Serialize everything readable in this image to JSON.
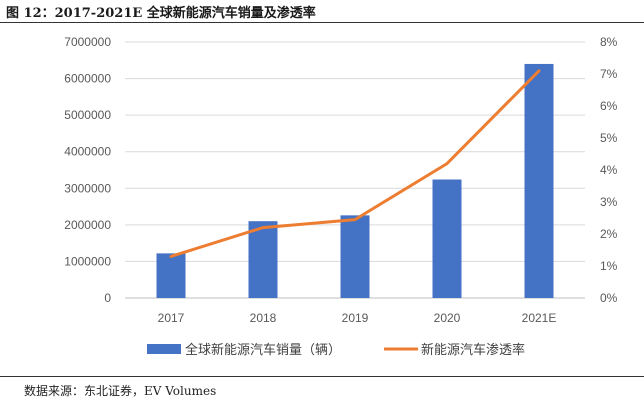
{
  "header": {
    "title": "图 12：2017-2021E 全球新能源汽车销量及渗透率"
  },
  "footer": {
    "source": "数据来源：东北证券，EV Volumes"
  },
  "chart_data": {
    "type": "bar",
    "title": "图 12：2017-2021E 全球新能源汽车销量及渗透率",
    "categories": [
      "2017",
      "2018",
      "2019",
      "2020",
      "2021E"
    ],
    "series": [
      {
        "name": "全球新能源汽车销量（辆）",
        "type": "bar",
        "axis": "left",
        "color": "#4472C4",
        "values": [
          1220000,
          2100000,
          2260000,
          3240000,
          6400000
        ]
      },
      {
        "name": "新能源汽车渗透率",
        "type": "line",
        "axis": "right",
        "color": "#ED7D31",
        "values": [
          1.3,
          2.2,
          2.45,
          4.2,
          7.1
        ]
      }
    ],
    "y_left": {
      "range": [
        0,
        7000000
      ],
      "ticks": [
        "0",
        "1000000",
        "2000000",
        "3000000",
        "4000000",
        "5000000",
        "6000000",
        "7000000"
      ]
    },
    "y_right": {
      "range": [
        0,
        8
      ],
      "ticks": [
        "0%",
        "1%",
        "2%",
        "3%",
        "4%",
        "5%",
        "6%",
        "7%",
        "8%"
      ]
    },
    "grid": true,
    "legend": "bottom"
  }
}
